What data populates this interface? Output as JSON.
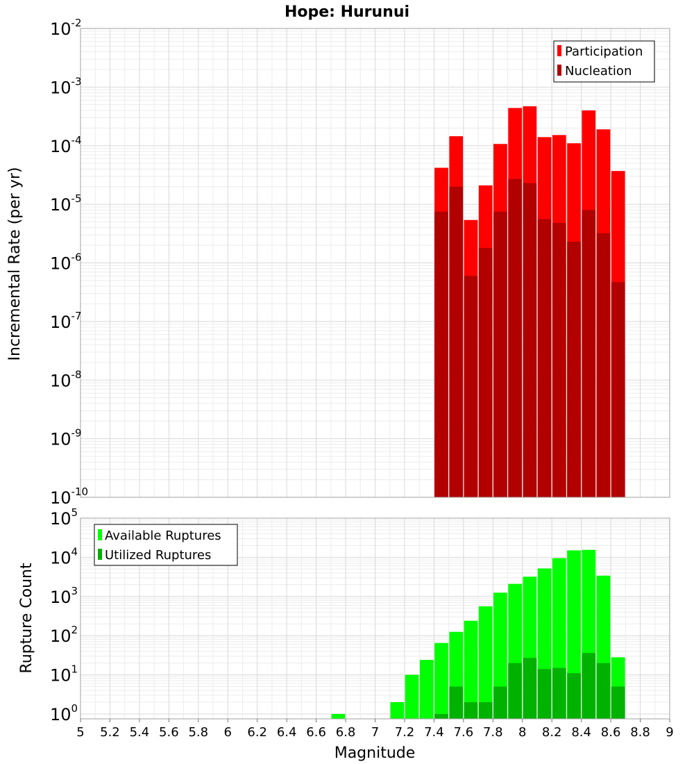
{
  "chart_data": [
    {
      "type": "bar",
      "title": "Hope: Hurunui",
      "ylabel": "Incremental Rate (per yr)",
      "xlabel": "",
      "yscale": "log",
      "ylim": [
        1e-10,
        0.01
      ],
      "xlim": [
        5,
        9
      ],
      "grid": true,
      "legend_position": "top-right",
      "bar_mode": "overlay",
      "x": [
        7.45,
        7.55,
        7.65,
        7.75,
        7.85,
        7.95,
        8.05,
        8.15,
        8.25,
        8.35,
        8.45,
        8.55,
        8.65
      ],
      "series": [
        {
          "name": "Participation",
          "color": "#ff0000",
          "values": [
            4.2e-05,
            0.000145,
            5.4e-06,
            2.1e-05,
            0.000107,
            0.00044,
            0.00047,
            0.00014,
            0.000152,
            0.00011,
            0.0004,
            0.00019,
            3.7e-05
          ]
        },
        {
          "name": "Nucleation",
          "color": "#b20000",
          "values": [
            7.5e-06,
            2e-05,
            6e-07,
            1.8e-06,
            7.5e-06,
            2.7e-05,
            2.3e-05,
            5.6e-06,
            4.8e-06,
            2.3e-06,
            8e-06,
            3.2e-06,
            4.7e-07
          ]
        }
      ]
    },
    {
      "type": "bar",
      "title": "",
      "ylabel": "Rupture Count",
      "xlabel": "Magnitude",
      "yscale": "log",
      "ylim": [
        0.75,
        100000.0
      ],
      "xlim": [
        5,
        9
      ],
      "grid": true,
      "legend_position": "top-left",
      "bar_mode": "overlay",
      "x_ticks": [
        "5",
        "5.2",
        "5.4",
        "5.6",
        "5.8",
        "6",
        "6.2",
        "6.4",
        "6.6",
        "6.8",
        "7",
        "7.2",
        "7.4",
        "7.6",
        "7.8",
        "8",
        "8.2",
        "8.4",
        "8.6",
        "8.8",
        "9"
      ],
      "x": [
        6.75,
        7.15,
        7.25,
        7.35,
        7.45,
        7.55,
        7.65,
        7.75,
        7.85,
        7.95,
        8.05,
        8.15,
        8.25,
        8.35,
        8.45,
        8.55,
        8.65
      ],
      "series": [
        {
          "name": "Available Ruptures",
          "color": "#00ff00",
          "values": [
            1,
            2,
            10,
            24,
            65,
            125,
            240,
            560,
            1250,
            2100,
            3200,
            5200,
            9500,
            15000,
            15500,
            3400,
            28
          ]
        },
        {
          "name": "Utilized Ruptures",
          "color": "#00b200",
          "values": [
            0,
            0,
            0,
            0,
            1,
            5,
            2,
            2,
            5,
            20,
            27,
            14,
            15,
            11,
            36,
            20,
            5
          ]
        }
      ]
    }
  ]
}
